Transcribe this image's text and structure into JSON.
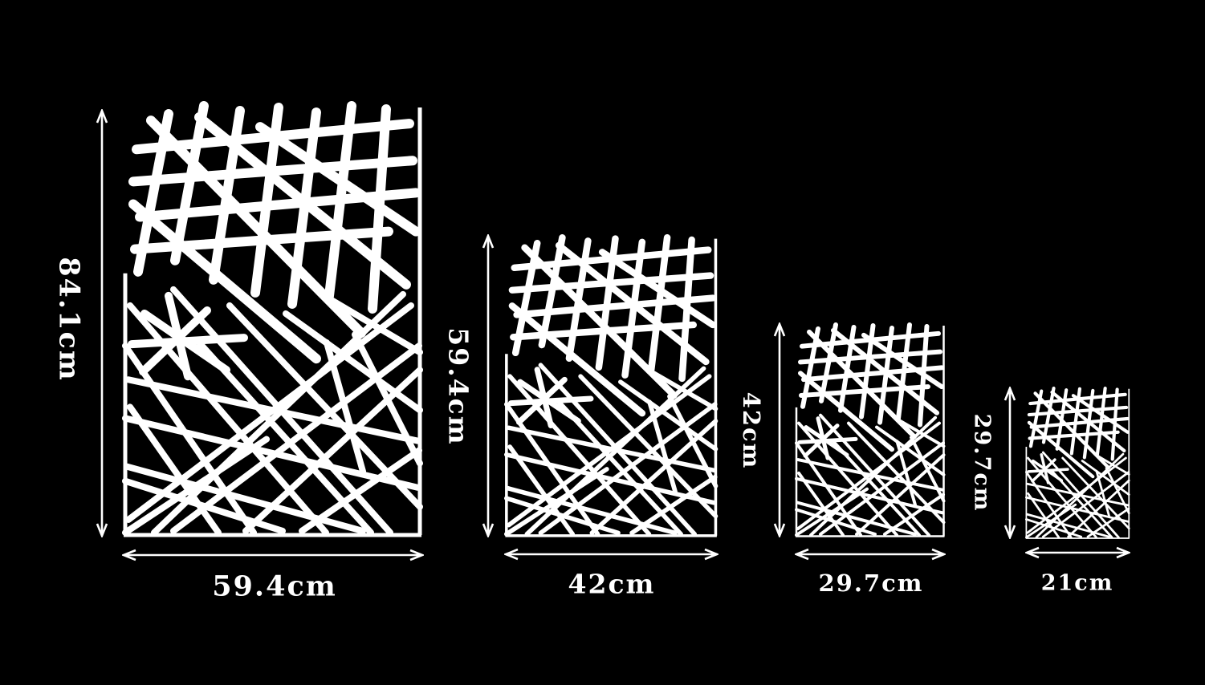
{
  "colors": {
    "background": "#000000",
    "foreground": "#ffffff"
  },
  "panels": [
    {
      "id": "a1",
      "height_label": "84.1cm",
      "width_label": "59.4cm"
    },
    {
      "id": "a2",
      "height_label": "59.4cm",
      "width_label": "42cm"
    },
    {
      "id": "a3",
      "height_label": "42cm",
      "width_label": "29.7cm"
    },
    {
      "id": "a4",
      "height_label": "29.7cm",
      "width_label": "21cm"
    }
  ]
}
